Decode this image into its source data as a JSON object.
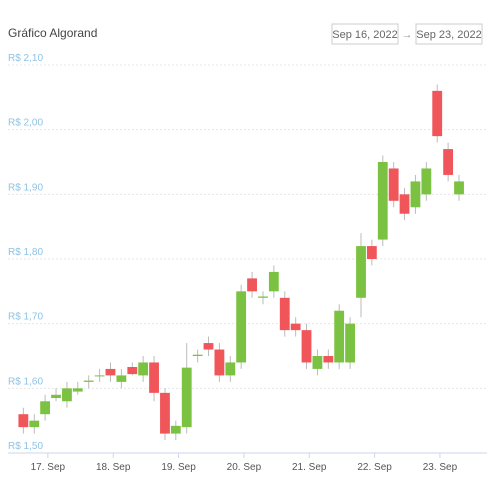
{
  "chart_data": {
    "type": "candlestick",
    "title": "Gráfico Algorand",
    "date_from": "Sep 16, 2022",
    "separator": "→",
    "date_to": "Sep 23, 2022",
    "x": [
      16.625,
      16.792,
      16.958,
      17.125,
      17.292,
      17.458,
      17.625,
      17.792,
      17.958,
      18.125,
      18.292,
      18.458,
      18.625,
      18.792,
      18.958,
      19.125,
      19.292,
      19.458,
      19.625,
      19.792,
      19.958,
      20.125,
      20.292,
      20.458,
      20.625,
      20.792,
      20.958,
      21.125,
      21.292,
      21.458,
      21.625,
      21.792,
      21.958,
      22.125,
      22.292,
      22.458,
      22.625,
      22.792,
      22.958,
      23.125,
      23.292
    ],
    "open": [
      1.56,
      1.54,
      1.56,
      1.585,
      1.58,
      1.595,
      1.61,
      1.62,
      1.63,
      1.61,
      1.633,
      1.62,
      1.64,
      1.593,
      1.53,
      1.54,
      1.65,
      1.67,
      1.66,
      1.62,
      1.64,
      1.77,
      1.74,
      1.75,
      1.74,
      1.7,
      1.69,
      1.63,
      1.65,
      1.64,
      1.64,
      1.74,
      1.82,
      1.83,
      1.94,
      1.9,
      1.88,
      1.9,
      2.06,
      1.97,
      1.9
    ],
    "high": [
      1.57,
      1.56,
      1.59,
      1.6,
      1.61,
      1.61,
      1.62,
      1.63,
      1.64,
      1.63,
      1.64,
      1.65,
      1.65,
      1.6,
      1.55,
      1.67,
      1.66,
      1.68,
      1.67,
      1.65,
      1.76,
      1.78,
      1.75,
      1.79,
      1.75,
      1.71,
      1.7,
      1.66,
      1.66,
      1.73,
      1.71,
      1.84,
      1.83,
      1.96,
      1.95,
      1.91,
      1.93,
      1.95,
      2.07,
      1.98,
      1.93
    ],
    "low": [
      1.53,
      1.53,
      1.55,
      1.58,
      1.57,
      1.59,
      1.6,
      1.61,
      1.61,
      1.6,
      1.62,
      1.61,
      1.58,
      1.52,
      1.52,
      1.53,
      1.64,
      1.65,
      1.61,
      1.61,
      1.63,
      1.74,
      1.73,
      1.74,
      1.68,
      1.68,
      1.63,
      1.62,
      1.63,
      1.63,
      1.63,
      1.71,
      1.79,
      1.82,
      1.88,
      1.86,
      1.87,
      1.89,
      1.98,
      1.92,
      1.89
    ],
    "close": [
      1.54,
      1.55,
      1.58,
      1.59,
      1.6,
      1.6,
      1.612,
      1.62,
      1.62,
      1.62,
      1.622,
      1.64,
      1.593,
      1.53,
      1.542,
      1.632,
      1.652,
      1.66,
      1.62,
      1.64,
      1.75,
      1.75,
      1.742,
      1.78,
      1.69,
      1.69,
      1.64,
      1.65,
      1.64,
      1.72,
      1.7,
      1.82,
      1.8,
      1.95,
      1.89,
      1.87,
      1.92,
      1.94,
      1.99,
      1.93,
      1.92
    ],
    "up_color": "#7cc242",
    "down_color": "#f0555a",
    "xlim": [
      16.39,
      23.72
    ],
    "xticks": [
      {
        "value": 17,
        "label": "17. Sep"
      },
      {
        "value": 18,
        "label": "18. Sep"
      },
      {
        "value": 19,
        "label": "19. Sep"
      },
      {
        "value": 20,
        "label": "20. Sep"
      },
      {
        "value": 21,
        "label": "21. Sep"
      },
      {
        "value": 22,
        "label": "22. Sep"
      },
      {
        "value": 23,
        "label": "23. Sep"
      }
    ],
    "ylim": [
      1.5,
      2.1
    ],
    "yticks": [
      {
        "value": 1.5,
        "label": "R$ 1,50"
      },
      {
        "value": 1.6,
        "label": "R$ 1,60"
      },
      {
        "value": 1.7,
        "label": "R$ 1,70"
      },
      {
        "value": 1.8,
        "label": "R$ 1,80"
      },
      {
        "value": 1.9,
        "label": "R$ 1,90"
      },
      {
        "value": 2.0,
        "label": "R$ 2,00"
      },
      {
        "value": 2.1,
        "label": "R$ 2,10"
      }
    ],
    "grid": true
  }
}
